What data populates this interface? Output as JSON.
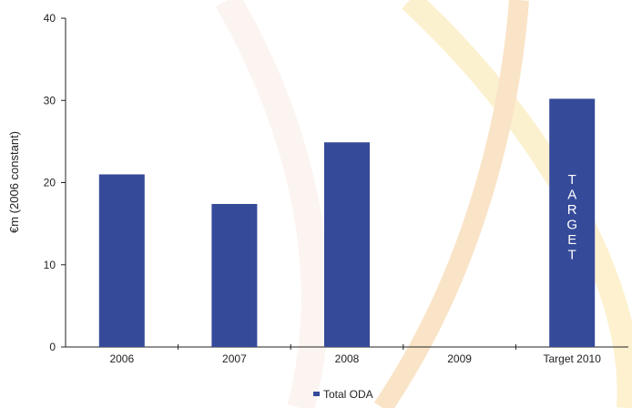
{
  "chart_data": {
    "type": "bar",
    "categories": [
      "2006",
      "2007",
      "2008",
      "2009",
      "Target 2010"
    ],
    "series": [
      {
        "name": "Total ODA",
        "values": [
          21,
          17.4,
          24.9,
          null,
          30.2
        ]
      }
    ],
    "ylabel": "€m (2006 constant)",
    "ylim": [
      0,
      40
    ],
    "yticks": [
      "0",
      "10",
      "20",
      "30",
      "40"
    ],
    "bar_annotation": {
      "category": "Target 2010",
      "text": "TARGET"
    },
    "legend": "bottom-center",
    "grid": false,
    "colors": {
      "bar": "#354a98",
      "axis": "#222222"
    }
  }
}
